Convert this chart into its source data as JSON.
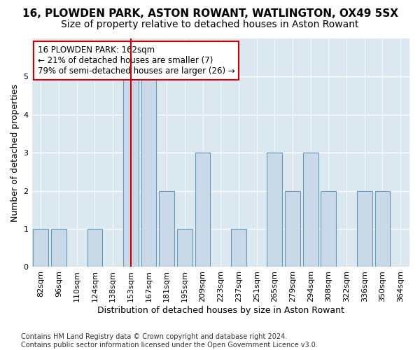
{
  "title": "16, PLOWDEN PARK, ASTON ROWANT, WATLINGTON, OX49 5SX",
  "subtitle": "Size of property relative to detached houses in Aston Rowant",
  "xlabel": "Distribution of detached houses by size in Aston Rowant",
  "ylabel": "Number of detached properties",
  "categories": [
    "82sqm",
    "96sqm",
    "110sqm",
    "124sqm",
    "138sqm",
    "153sqm",
    "167sqm",
    "181sqm",
    "195sqm",
    "209sqm",
    "223sqm",
    "237sqm",
    "251sqm",
    "265sqm",
    "279sqm",
    "294sqm",
    "308sqm",
    "322sqm",
    "336sqm",
    "350sqm",
    "364sqm"
  ],
  "values": [
    1,
    1,
    0,
    1,
    0,
    5,
    5,
    2,
    1,
    3,
    0,
    1,
    0,
    3,
    2,
    3,
    2,
    0,
    2,
    2,
    0
  ],
  "bar_color": "#c9d9e8",
  "bar_edge_color": "#6699bb",
  "vline_color": "#cc0000",
  "vline_x_index": 5,
  "annotation_text": "16 PLOWDEN PARK: 162sqm\n← 21% of detached houses are smaller (7)\n79% of semi-detached houses are larger (26) →",
  "annotation_box_facecolor": "#ffffff",
  "annotation_box_edgecolor": "#cc0000",
  "footnote": "Contains HM Land Registry data © Crown copyright and database right 2024.\nContains public sector information licensed under the Open Government Licence v3.0.",
  "ylim": [
    0,
    6
  ],
  "yticks": [
    0,
    1,
    2,
    3,
    4,
    5,
    6
  ],
  "bg_color": "#dce8f0",
  "title_fontsize": 11,
  "subtitle_fontsize": 10,
  "xlabel_fontsize": 9,
  "ylabel_fontsize": 9,
  "tick_fontsize": 8,
  "annot_fontsize": 8.5,
  "footnote_fontsize": 7
}
